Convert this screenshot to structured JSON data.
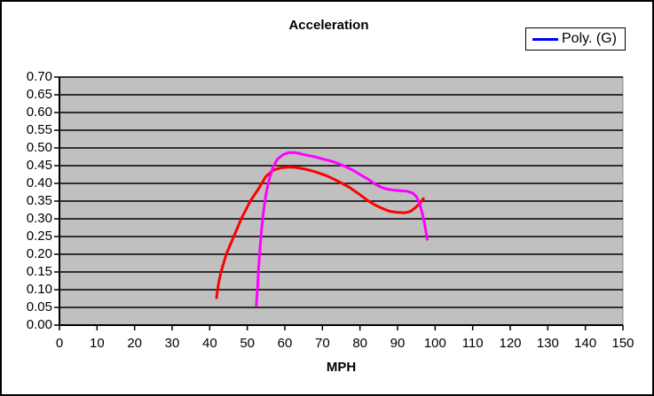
{
  "chart": {
    "title": "Acceleration",
    "xlabel": "MPH"
  },
  "legend": {
    "entries": [
      {
        "label": "Poly. (G)",
        "color": "#0000ff"
      }
    ]
  },
  "chart_data": {
    "type": "line",
    "title": "Acceleration",
    "xlabel": "MPH",
    "ylabel": "",
    "xlim": [
      0,
      150
    ],
    "ylim": [
      0.0,
      0.7
    ],
    "x_tick_step": 10,
    "y_tick_step": 0.05,
    "x_tick_labels": [
      "0",
      "10",
      "20",
      "30",
      "40",
      "50",
      "60",
      "70",
      "80",
      "90",
      "100",
      "110",
      "120",
      "130",
      "140",
      "150"
    ],
    "y_tick_labels": [
      "0.00",
      "0.05",
      "0.10",
      "0.15",
      "0.20",
      "0.25",
      "0.30",
      "0.35",
      "0.40",
      "0.45",
      "0.50",
      "0.55",
      "0.60",
      "0.65",
      "0.70"
    ],
    "grid": "horizontal",
    "gridline_color": "#000000",
    "plot_background": "#c0c0c0",
    "legend_position": "top-right",
    "legend_entries": [
      {
        "label": "Poly. (G)",
        "color": "#0000ff"
      }
    ],
    "series": [
      {
        "name": "",
        "color": "#ff0000",
        "points": [
          [
            41.8,
            0.077
          ],
          [
            42.3,
            0.115
          ],
          [
            43,
            0.15
          ],
          [
            44.4,
            0.2
          ],
          [
            46.4,
            0.25
          ],
          [
            48.4,
            0.3
          ],
          [
            50.8,
            0.35
          ],
          [
            53,
            0.385
          ],
          [
            55,
            0.42
          ],
          [
            57,
            0.438
          ],
          [
            59,
            0.444
          ],
          [
            61,
            0.446
          ],
          [
            63,
            0.445
          ],
          [
            65.5,
            0.44
          ],
          [
            68,
            0.433
          ],
          [
            71,
            0.422
          ],
          [
            74,
            0.407
          ],
          [
            77,
            0.39
          ],
          [
            80,
            0.368
          ],
          [
            82,
            0.352
          ],
          [
            84,
            0.339
          ],
          [
            86,
            0.329
          ],
          [
            88,
            0.321
          ],
          [
            90,
            0.318
          ],
          [
            92,
            0.317
          ],
          [
            93.5,
            0.321
          ],
          [
            95,
            0.334
          ],
          [
            96,
            0.345
          ],
          [
            96.9,
            0.357
          ]
        ]
      },
      {
        "name": "",
        "color": "#ff00ff",
        "points": [
          [
            52.4,
            0.056
          ],
          [
            52.7,
            0.1
          ],
          [
            53,
            0.16
          ],
          [
            53.4,
            0.22
          ],
          [
            53.8,
            0.27
          ],
          [
            54.3,
            0.32
          ],
          [
            55,
            0.37
          ],
          [
            55.8,
            0.41
          ],
          [
            56.8,
            0.445
          ],
          [
            58,
            0.468
          ],
          [
            59.5,
            0.481
          ],
          [
            61,
            0.487
          ],
          [
            62.5,
            0.487
          ],
          [
            64,
            0.484
          ],
          [
            66,
            0.479
          ],
          [
            68,
            0.475
          ],
          [
            70,
            0.469
          ],
          [
            72,
            0.464
          ],
          [
            74,
            0.457
          ],
          [
            76,
            0.448
          ],
          [
            78,
            0.438
          ],
          [
            80,
            0.425
          ],
          [
            82,
            0.413
          ],
          [
            84,
            0.398
          ],
          [
            85.5,
            0.39
          ],
          [
            87,
            0.384
          ],
          [
            89,
            0.381
          ],
          [
            91,
            0.379
          ],
          [
            92.5,
            0.378
          ],
          [
            94,
            0.373
          ],
          [
            95,
            0.363
          ],
          [
            95.8,
            0.345
          ],
          [
            96.6,
            0.316
          ],
          [
            97.3,
            0.281
          ],
          [
            97.9,
            0.242
          ]
        ]
      }
    ]
  }
}
